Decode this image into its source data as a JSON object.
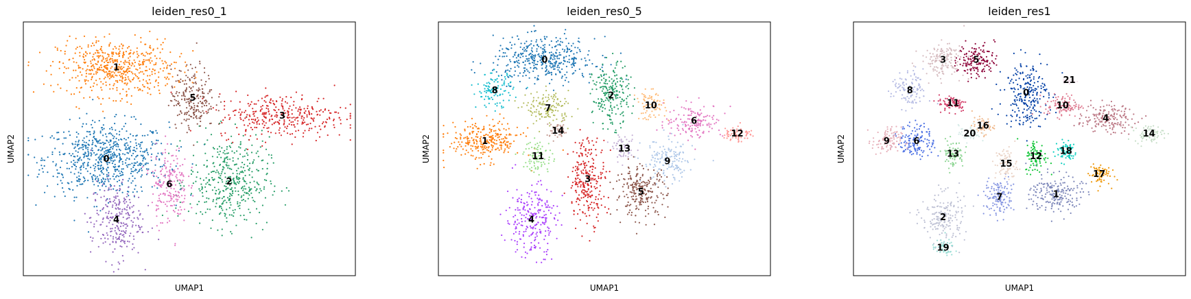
{
  "chart_data": [
    {
      "type": "scatter",
      "title": "leiden_res0_1",
      "xlabel": "UMAP1",
      "ylabel": "UMAP2",
      "grid": false,
      "clusters": [
        {
          "label": "0",
          "color": "#1f77b4",
          "center": [
            0.25,
            0.46
          ],
          "spread": [
            0.17,
            0.13
          ],
          "n": 700
        },
        {
          "label": "1",
          "color": "#ff7f0e",
          "center": [
            0.28,
            0.82
          ],
          "spread": [
            0.16,
            0.1
          ],
          "n": 550
        },
        {
          "label": "2",
          "color": "#279e68",
          "center": [
            0.62,
            0.37
          ],
          "spread": [
            0.11,
            0.16
          ],
          "n": 420
        },
        {
          "label": "3",
          "color": "#d62728",
          "center": [
            0.78,
            0.63
          ],
          "spread": [
            0.18,
            0.08
          ],
          "n": 350
        },
        {
          "label": "4",
          "color": "#9467bd",
          "center": [
            0.28,
            0.22
          ],
          "spread": [
            0.07,
            0.14
          ],
          "n": 260
        },
        {
          "label": "5",
          "color": "#8c564b",
          "center": [
            0.51,
            0.7
          ],
          "spread": [
            0.06,
            0.11
          ],
          "n": 220
        },
        {
          "label": "6",
          "color": "#e377c2",
          "center": [
            0.44,
            0.36
          ],
          "spread": [
            0.05,
            0.14
          ],
          "n": 200
        }
      ]
    },
    {
      "type": "scatter",
      "title": "leiden_res0_5",
      "xlabel": "UMAP1",
      "ylabel": "UMAP2",
      "grid": false,
      "clusters": [
        {
          "label": "0",
          "color": "#1f77b4",
          "center": [
            0.32,
            0.85
          ],
          "spread": [
            0.14,
            0.08
          ],
          "n": 420
        },
        {
          "label": "1",
          "color": "#ff7f0e",
          "center": [
            0.14,
            0.53
          ],
          "spread": [
            0.1,
            0.07
          ],
          "n": 280
        },
        {
          "label": "2",
          "color": "#279e68",
          "center": [
            0.52,
            0.71
          ],
          "spread": [
            0.05,
            0.11
          ],
          "n": 220
        },
        {
          "label": "3",
          "color": "#d62728",
          "center": [
            0.45,
            0.38
          ],
          "spread": [
            0.05,
            0.15
          ],
          "n": 260
        },
        {
          "label": "4",
          "color": "#aa40fc",
          "center": [
            0.28,
            0.22
          ],
          "spread": [
            0.07,
            0.13
          ],
          "n": 240
        },
        {
          "label": "5",
          "color": "#8c564b",
          "center": [
            0.61,
            0.33
          ],
          "spread": [
            0.07,
            0.09
          ],
          "n": 230
        },
        {
          "label": "6",
          "color": "#e377c2",
          "center": [
            0.77,
            0.61
          ],
          "spread": [
            0.08,
            0.06
          ],
          "n": 150
        },
        {
          "label": "7",
          "color": "#b5bd61",
          "center": [
            0.33,
            0.66
          ],
          "spread": [
            0.06,
            0.06
          ],
          "n": 140
        },
        {
          "label": "8",
          "color": "#17becf",
          "center": [
            0.17,
            0.73
          ],
          "spread": [
            0.05,
            0.06
          ],
          "n": 110
        },
        {
          "label": "9",
          "color": "#aec7e8",
          "center": [
            0.69,
            0.45
          ],
          "spread": [
            0.07,
            0.08
          ],
          "n": 150
        },
        {
          "label": "10",
          "color": "#ffbb78",
          "center": [
            0.64,
            0.67
          ],
          "spread": [
            0.04,
            0.05
          ],
          "n": 80
        },
        {
          "label": "11",
          "color": "#98df8a",
          "center": [
            0.3,
            0.47
          ],
          "spread": [
            0.04,
            0.06
          ],
          "n": 90
        },
        {
          "label": "12",
          "color": "#ff9896",
          "center": [
            0.9,
            0.56
          ],
          "spread": [
            0.04,
            0.03
          ],
          "n": 70
        },
        {
          "label": "13",
          "color": "#c5b0d5",
          "center": [
            0.56,
            0.5
          ],
          "spread": [
            0.03,
            0.04
          ],
          "n": 60
        },
        {
          "label": "14",
          "color": "#c49c94",
          "center": [
            0.36,
            0.57
          ],
          "spread": [
            0.03,
            0.03
          ],
          "n": 50
        }
      ]
    },
    {
      "type": "scatter",
      "title": "leiden_res1",
      "xlabel": "UMAP1",
      "ylabel": "UMAP2",
      "grid": false,
      "clusters": [
        {
          "label": "0",
          "color": "#023fa5",
          "center": [
            0.52,
            0.72
          ],
          "spread": [
            0.06,
            0.12
          ],
          "n": 240
        },
        {
          "label": "1",
          "color": "#7d87b9",
          "center": [
            0.61,
            0.32
          ],
          "spread": [
            0.07,
            0.07
          ],
          "n": 200
        },
        {
          "label": "2",
          "color": "#bec1d4",
          "center": [
            0.27,
            0.23
          ],
          "spread": [
            0.06,
            0.09
          ],
          "n": 180
        },
        {
          "label": "3",
          "color": "#d6bcc0",
          "center": [
            0.27,
            0.85
          ],
          "spread": [
            0.06,
            0.06
          ],
          "n": 150
        },
        {
          "label": "4",
          "color": "#bb7784",
          "center": [
            0.76,
            0.62
          ],
          "spread": [
            0.08,
            0.05
          ],
          "n": 170
        },
        {
          "label": "5",
          "color": "#8e063b",
          "center": [
            0.37,
            0.85
          ],
          "spread": [
            0.05,
            0.06
          ],
          "n": 150
        },
        {
          "label": "6",
          "color": "#4a6fe3",
          "center": [
            0.19,
            0.53
          ],
          "spread": [
            0.05,
            0.06
          ],
          "n": 140
        },
        {
          "label": "7",
          "color": "#8595e1",
          "center": [
            0.44,
            0.31
          ],
          "spread": [
            0.04,
            0.07
          ],
          "n": 130
        },
        {
          "label": "8",
          "color": "#b5bbe3",
          "center": [
            0.17,
            0.73
          ],
          "spread": [
            0.05,
            0.07
          ],
          "n": 110
        },
        {
          "label": "9",
          "color": "#e6afb9",
          "center": [
            0.1,
            0.53
          ],
          "spread": [
            0.04,
            0.05
          ],
          "n": 100
        },
        {
          "label": "10",
          "color": "#e07b91",
          "center": [
            0.63,
            0.67
          ],
          "spread": [
            0.05,
            0.04
          ],
          "n": 100
        },
        {
          "label": "11",
          "color": "#d33f6a",
          "center": [
            0.3,
            0.68
          ],
          "spread": [
            0.04,
            0.03
          ],
          "n": 80
        },
        {
          "label": "12",
          "color": "#11c638",
          "center": [
            0.55,
            0.47
          ],
          "spread": [
            0.03,
            0.06
          ],
          "n": 90
        },
        {
          "label": "13",
          "color": "#8dd593",
          "center": [
            0.3,
            0.48
          ],
          "spread": [
            0.03,
            0.05
          ],
          "n": 80
        },
        {
          "label": "14",
          "color": "#c6dec7",
          "center": [
            0.89,
            0.56
          ],
          "spread": [
            0.04,
            0.03
          ],
          "n": 70
        },
        {
          "label": "15",
          "color": "#ead3c6",
          "center": [
            0.46,
            0.44
          ],
          "spread": [
            0.03,
            0.06
          ],
          "n": 80
        },
        {
          "label": "16",
          "color": "#f0b98d",
          "center": [
            0.39,
            0.59
          ],
          "spread": [
            0.03,
            0.03
          ],
          "n": 50
        },
        {
          "label": "17",
          "color": "#ef9708",
          "center": [
            0.74,
            0.4
          ],
          "spread": [
            0.03,
            0.04
          ],
          "n": 70
        },
        {
          "label": "18",
          "color": "#0fcfc0",
          "center": [
            0.64,
            0.49
          ],
          "spread": [
            0.03,
            0.04
          ],
          "n": 70
        },
        {
          "label": "19",
          "color": "#9cded6",
          "center": [
            0.27,
            0.11
          ],
          "spread": [
            0.03,
            0.03
          ],
          "n": 50
        },
        {
          "label": "20",
          "color": "#d5eae7",
          "center": [
            0.35,
            0.56
          ],
          "spread": [
            0.03,
            0.03
          ],
          "n": 40
        },
        {
          "label": "21",
          "color": "#f3e1eb",
          "center": [
            0.65,
            0.77
          ],
          "spread": [
            0.02,
            0.02
          ],
          "n": 20
        }
      ]
    }
  ]
}
